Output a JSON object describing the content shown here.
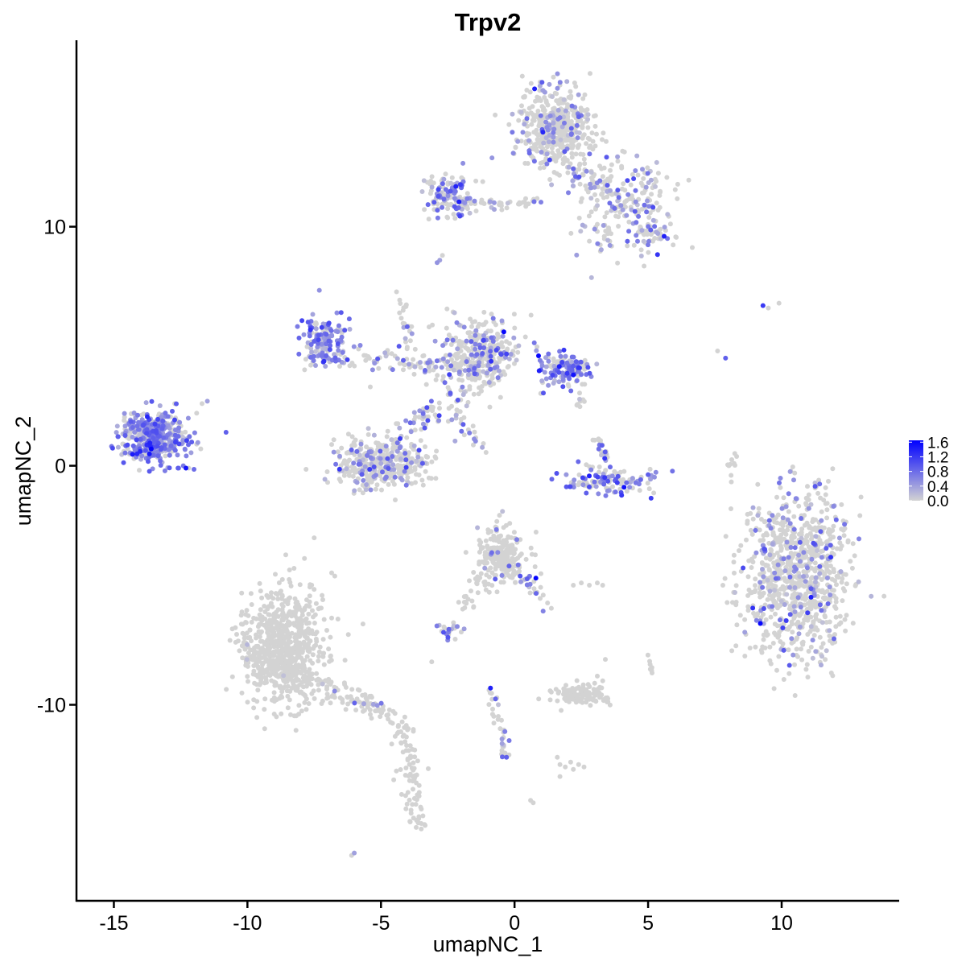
{
  "chart_data": {
    "type": "scatter",
    "title": "Trpv2",
    "xlabel": "umapNC_1",
    "ylabel": "umapNC_2",
    "xlim": [
      -16.4,
      14.4
    ],
    "ylim": [
      -18.2,
      17.8
    ],
    "x_ticks": [
      -15,
      -10,
      -5,
      0,
      5,
      10
    ],
    "x_tick_labels": [
      "-15",
      "-10",
      "-5",
      "0",
      "5",
      "10"
    ],
    "y_ticks": [
      -10,
      0,
      10
    ],
    "y_tick_labels": [
      "-10",
      "0",
      "10"
    ],
    "grid": false,
    "legend": {
      "placement": "right",
      "type": "colorbar",
      "labels": [
        "1.6",
        "1.2",
        "0.8",
        "0.4",
        "0.0"
      ],
      "values": [
        1.6,
        1.2,
        0.8,
        0.4,
        0.0
      ],
      "range": [
        0.0,
        1.65
      ],
      "low_color": "#d3d3d3",
      "high_color": "#0000ff"
    },
    "clusters": [
      {
        "name": "c1",
        "cx": -13.5,
        "cy": 1.2,
        "sx": 0.6,
        "sy": 0.55,
        "n": 420,
        "expr_frac": 0.75,
        "expr_mean": 0.6
      },
      {
        "name": "c2",
        "cx": -7.2,
        "cy": 5.2,
        "sx": 0.45,
        "sy": 0.55,
        "n": 140,
        "expr_frac": 0.75,
        "expr_mean": 0.55
      },
      {
        "name": "c3",
        "cx": -5.0,
        "cy": 0.1,
        "sx": 0.95,
        "sy": 0.5,
        "n": 420,
        "expr_frac": 0.25,
        "expr_mean": 0.45
      },
      {
        "name": "c4",
        "cx": -1.3,
        "cy": 4.7,
        "sx": 0.7,
        "sy": 0.7,
        "n": 320,
        "expr_frac": 0.3,
        "expr_mean": 0.5
      },
      {
        "name": "c5",
        "cx": 1.9,
        "cy": 4.1,
        "sx": 0.45,
        "sy": 0.35,
        "n": 130,
        "expr_frac": 0.7,
        "expr_mean": 0.6
      },
      {
        "name": "c6",
        "cx": 3.5,
        "cy": -0.6,
        "sx": 0.85,
        "sy": 0.3,
        "n": 120,
        "expr_frac": 0.55,
        "expr_mean": 0.75
      },
      {
        "name": "c7",
        "cx": 1.5,
        "cy": 14.2,
        "sx": 0.7,
        "sy": 0.8,
        "n": 480,
        "expr_frac": 0.15,
        "expr_mean": 0.45
      },
      {
        "name": "c8",
        "cx": -2.5,
        "cy": 11.3,
        "sx": 0.45,
        "sy": 0.45,
        "n": 120,
        "expr_frac": 0.45,
        "expr_mean": 0.55
      },
      {
        "name": "c9",
        "cx": 4.0,
        "cy": 10.8,
        "sx": 0.9,
        "sy": 1.0,
        "n": 150,
        "expr_frac": 0.3,
        "expr_mean": 0.5
      },
      {
        "name": "c10",
        "cx": 10.6,
        "cy": -4.6,
        "sx": 1.0,
        "sy": 1.7,
        "n": 900,
        "expr_frac": 0.17,
        "expr_mean": 0.5
      },
      {
        "name": "c11",
        "cx": -0.5,
        "cy": -3.8,
        "sx": 0.45,
        "sy": 0.6,
        "n": 220,
        "expr_frac": 0.05,
        "expr_mean": 0.4
      },
      {
        "name": "c12",
        "cx": -8.7,
        "cy": -7.6,
        "sx": 0.8,
        "sy": 1.3,
        "n": 700,
        "expr_frac": 0.0,
        "expr_mean": 0.3
      },
      {
        "name": "c13",
        "cx": 2.5,
        "cy": -9.6,
        "sx": 0.6,
        "sy": 0.2,
        "n": 110,
        "expr_frac": 0.0,
        "expr_mean": 0.3
      },
      {
        "name": "c14",
        "cx": -2.4,
        "cy": -6.9,
        "sx": 0.2,
        "sy": 0.2,
        "n": 20,
        "expr_frac": 0.5,
        "expr_mean": 0.5
      }
    ],
    "paths": [
      {
        "name": "p1",
        "x0": -10.0,
        "y0": -7.8,
        "x1": -4.6,
        "y1": -10.5,
        "n": 140,
        "spread": 0.22,
        "expr_frac": 0.1
      },
      {
        "name": "p2",
        "x0": -4.2,
        "y0": -10.5,
        "x1": -3.5,
        "y1": -15.2,
        "n": 60,
        "spread": 0.15,
        "expr_frac": 0.0
      },
      {
        "name": "p3",
        "x0": -4.6,
        "y0": -10.6,
        "x1": -3.6,
        "y1": -15.0,
        "n": 30,
        "spread": 0.25,
        "expr_frac": 0.0
      },
      {
        "name": "p4",
        "x0": -6.3,
        "y0": 4.5,
        "x1": -1.3,
        "y1": 4.0,
        "n": 90,
        "spread": 0.25,
        "expr_frac": 0.4
      },
      {
        "name": "p5",
        "x0": -4.0,
        "y0": 1.5,
        "x1": -1.0,
        "y1": 3.6,
        "n": 60,
        "spread": 0.3,
        "expr_frac": 0.25
      },
      {
        "name": "p6",
        "x0": -4.3,
        "y0": 7.2,
        "x1": -3.9,
        "y1": 4.8,
        "n": 25,
        "spread": 0.12,
        "expr_frac": 0.3
      },
      {
        "name": "p7",
        "x0": -2.3,
        "y0": 2.3,
        "x1": -1.3,
        "y1": 0.8,
        "n": 20,
        "spread": 0.15,
        "expr_frac": 0.3
      },
      {
        "name": "p8",
        "x0": -3.2,
        "y0": 11.0,
        "x1": 1.2,
        "y1": 11.0,
        "n": 55,
        "spread": 0.15,
        "expr_frac": 0.2
      },
      {
        "name": "p9",
        "x0": 1.5,
        "y0": 13.0,
        "x1": 5.8,
        "y1": 9.5,
        "n": 90,
        "spread": 0.35,
        "expr_frac": 0.3
      },
      {
        "name": "p10",
        "x0": 1.8,
        "y0": 12.0,
        "x1": 5.8,
        "y1": 12.0,
        "n": 50,
        "spread": 0.35,
        "expr_frac": 0.3
      },
      {
        "name": "p11",
        "x0": -1.3,
        "y0": -4.5,
        "x1": -1.9,
        "y1": -6.0,
        "n": 20,
        "spread": 0.15,
        "expr_frac": 0.0
      },
      {
        "name": "p12",
        "x0": 0.2,
        "y0": -4.5,
        "x1": 1.2,
        "y1": -5.8,
        "n": 25,
        "spread": 0.12,
        "expr_frac": 0.3
      },
      {
        "name": "p13",
        "x0": -0.9,
        "y0": -9.4,
        "x1": -0.3,
        "y1": -12.3,
        "n": 35,
        "spread": 0.1,
        "expr_frac": 0.1
      },
      {
        "name": "p14",
        "x0": 8.0,
        "y0": -0.6,
        "x1": 8.3,
        "y1": 0.8,
        "n": 10,
        "spread": 0.08,
        "expr_frac": 0.0
      },
      {
        "name": "p15",
        "x0": 5.0,
        "y0": -7.9,
        "x1": 5.1,
        "y1": -8.7,
        "n": 8,
        "spread": 0.06,
        "expr_frac": 0.0
      },
      {
        "name": "p16",
        "x0": -3.4,
        "y0": 2.2,
        "x1": -2.9,
        "y1": 2.6,
        "n": 15,
        "spread": 0.15,
        "expr_frac": 0.3
      },
      {
        "name": "p17",
        "x0": 2.3,
        "y0": 2.2,
        "x1": 2.6,
        "y1": 3.3,
        "n": 10,
        "spread": 0.1,
        "expr_frac": 0.2
      },
      {
        "name": "p18",
        "x0": 3.1,
        "y0": 1.2,
        "x1": 3.5,
        "y1": 0.2,
        "n": 20,
        "spread": 0.12,
        "expr_frac": 0.4
      }
    ],
    "points": [
      {
        "x": -12.6,
        "y": -0.1,
        "e": 0.9
      },
      {
        "x": -12.4,
        "y": 0.0,
        "e": 0.7
      },
      {
        "x": -12.2,
        "y": -0.1,
        "e": 0.0
      },
      {
        "x": -12.0,
        "y": -0.15,
        "e": 0.8
      },
      {
        "x": -11.5,
        "y": 2.7,
        "e": 0.4
      },
      {
        "x": -11.7,
        "y": 2.6,
        "e": 0.0
      },
      {
        "x": -11.9,
        "y": 2.2,
        "e": 0.0
      },
      {
        "x": -10.8,
        "y": 1.4,
        "e": 0.9
      },
      {
        "x": -11.9,
        "y": 0.9,
        "e": 0.0
      },
      {
        "x": -12.5,
        "y": 0.9,
        "e": 0.0
      },
      {
        "x": -5.4,
        "y": 3.3,
        "e": 0.0
      },
      {
        "x": 9.3,
        "y": 6.7,
        "e": 1.2
      },
      {
        "x": 9.5,
        "y": 6.6,
        "e": 0.0
      },
      {
        "x": 9.9,
        "y": 6.8,
        "e": 0.0
      },
      {
        "x": 7.6,
        "y": 4.8,
        "e": 0.0
      },
      {
        "x": 7.9,
        "y": 4.5,
        "e": 0.9
      },
      {
        "x": 8.1,
        "y": -1.8,
        "e": 0.0
      },
      {
        "x": 7.8,
        "y": -5.0,
        "e": 0.0
      },
      {
        "x": 8.2,
        "y": -5.3,
        "e": 0.0
      },
      {
        "x": -6.0,
        "y": -16.2,
        "e": 0.4
      },
      {
        "x": -6.1,
        "y": -16.3,
        "e": 0.0
      },
      {
        "x": 0.6,
        "y": -14.0,
        "e": 0.0
      },
      {
        "x": 0.7,
        "y": -14.1,
        "e": 0.0
      },
      {
        "x": 1.7,
        "y": -12.5,
        "e": 0.0
      },
      {
        "x": 1.9,
        "y": -12.6,
        "e": 0.0
      },
      {
        "x": 2.1,
        "y": -12.4,
        "e": 0.0
      },
      {
        "x": 2.2,
        "y": -12.7,
        "e": 0.0
      },
      {
        "x": 2.4,
        "y": -12.5,
        "e": 0.0
      },
      {
        "x": 2.6,
        "y": -12.6,
        "e": 0.0
      },
      {
        "x": 1.7,
        "y": -13.0,
        "e": 0.0
      },
      {
        "x": 1.6,
        "y": -12.2,
        "e": 0.0
      },
      {
        "x": 2.2,
        "y": -5.0,
        "e": 0.0
      },
      {
        "x": 2.5,
        "y": -4.9,
        "e": 0.0
      },
      {
        "x": 2.8,
        "y": -5.0,
        "e": 0.0
      },
      {
        "x": 3.1,
        "y": -4.9,
        "e": 0.0
      },
      {
        "x": 3.3,
        "y": -5.0,
        "e": 0.0
      },
      {
        "x": 3.3,
        "y": -9.0,
        "e": 0.0
      },
      {
        "x": 3.1,
        "y": -8.8,
        "e": 0.0
      },
      {
        "x": 3.0,
        "y": -9.1,
        "e": 0.0
      },
      {
        "x": -0.9,
        "y": -9.3,
        "e": 1.4
      },
      {
        "x": -0.3,
        "y": -12.2,
        "e": 0.9
      },
      {
        "x": -0.2,
        "y": -11.5,
        "e": 0.7
      },
      {
        "x": -3.3,
        "y": 3.4,
        "e": 0.0
      },
      {
        "x": -2.9,
        "y": 8.5,
        "e": 0.5
      },
      {
        "x": -2.7,
        "y": 8.8,
        "e": 0.0
      },
      {
        "x": -2.8,
        "y": 8.6,
        "e": 0.4
      },
      {
        "x": 3.1,
        "y": 9.8,
        "e": 0.0
      },
      {
        "x": 3.1,
        "y": 10.1,
        "e": 0.0
      },
      {
        "x": 3.0,
        "y": 9.9,
        "e": 0.5
      },
      {
        "x": -2.5,
        "y": -7.3,
        "e": 0.6
      },
      {
        "x": -3.1,
        "y": -8.2,
        "e": 0.0
      },
      {
        "x": 3.4,
        "y": -8.1,
        "e": 0.0
      },
      {
        "x": 0.8,
        "y": -4.7,
        "e": 1.6
      },
      {
        "x": -0.4,
        "y": 5.6,
        "e": 1.6
      },
      {
        "x": 0.9,
        "y": 4.6,
        "e": 1.6
      },
      {
        "x": -13.6,
        "y": 0.7,
        "e": 1.6
      },
      {
        "x": -12.3,
        "y": -0.1,
        "e": 1.5
      },
      {
        "x": 4.1,
        "y": -0.9,
        "e": 1.5
      },
      {
        "x": 2.2,
        "y": 3.8,
        "e": 1.5
      },
      {
        "x": 9.2,
        "y": -6.6,
        "e": 1.6
      },
      {
        "x": 11.1,
        "y": -5.5,
        "e": 1.4
      },
      {
        "x": 5.6,
        "y": 9.6,
        "e": 1.4
      }
    ]
  }
}
